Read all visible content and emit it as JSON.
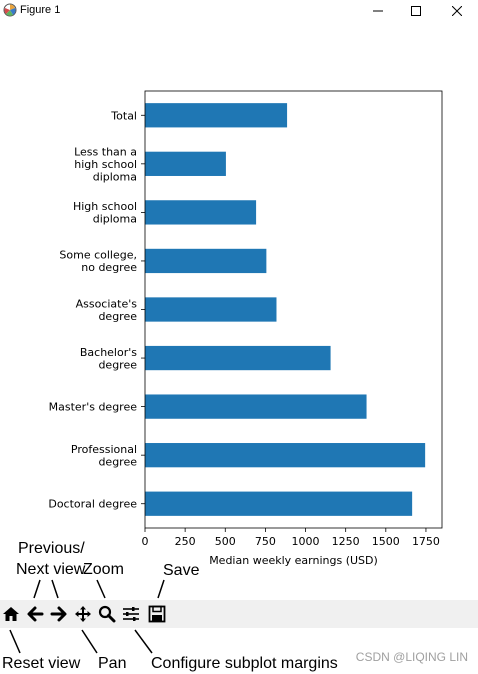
{
  "window": {
    "title": "Figure 1",
    "icon": "matplotlib-icon",
    "controls": [
      "minimize-icon",
      "maximize-icon",
      "close-icon"
    ]
  },
  "chart_data": {
    "type": "bar",
    "orientation": "horizontal",
    "categories": [
      "Total",
      "Less than a\nhigh school\ndiploma",
      "High school\ndiploma",
      "Some college,\nno degree",
      "Associate's\ndegree",
      "Bachelor's\ndegree",
      "Master's degree",
      "Professional\ndegree",
      "Doctoral degree"
    ],
    "values": [
      885,
      504,
      692,
      756,
      819,
      1156,
      1380,
      1745,
      1664
    ],
    "xlabel": "Median weekly earnings (USD)",
    "ylabel": "",
    "xlim": [
      0,
      1850
    ],
    "xticks": [
      0,
      250,
      500,
      750,
      1000,
      1250,
      1500,
      1750
    ],
    "bar_color": "#1f77b4",
    "grid": false
  },
  "toolbar": {
    "buttons": [
      {
        "icon": "home-icon",
        "label": "Reset view"
      },
      {
        "icon": "arrow-left-icon",
        "label": "Previous view"
      },
      {
        "icon": "arrow-right-icon",
        "label": "Next view"
      },
      {
        "icon": "move-icon",
        "label": "Pan"
      },
      {
        "icon": "zoom-icon",
        "label": "Zoom"
      },
      {
        "icon": "sliders-icon",
        "label": "Configure subplot margins"
      },
      {
        "icon": "save-icon",
        "label": "Save"
      }
    ]
  },
  "annotations": {
    "previous_line1": "Previous/",
    "previous_line2": "Next view",
    "zoom": "Zoom",
    "save": "Save",
    "reset": "Reset view",
    "pan": "Pan",
    "configure": "Configure subplot margins"
  },
  "watermark": "CSDN @LIQING LIN"
}
